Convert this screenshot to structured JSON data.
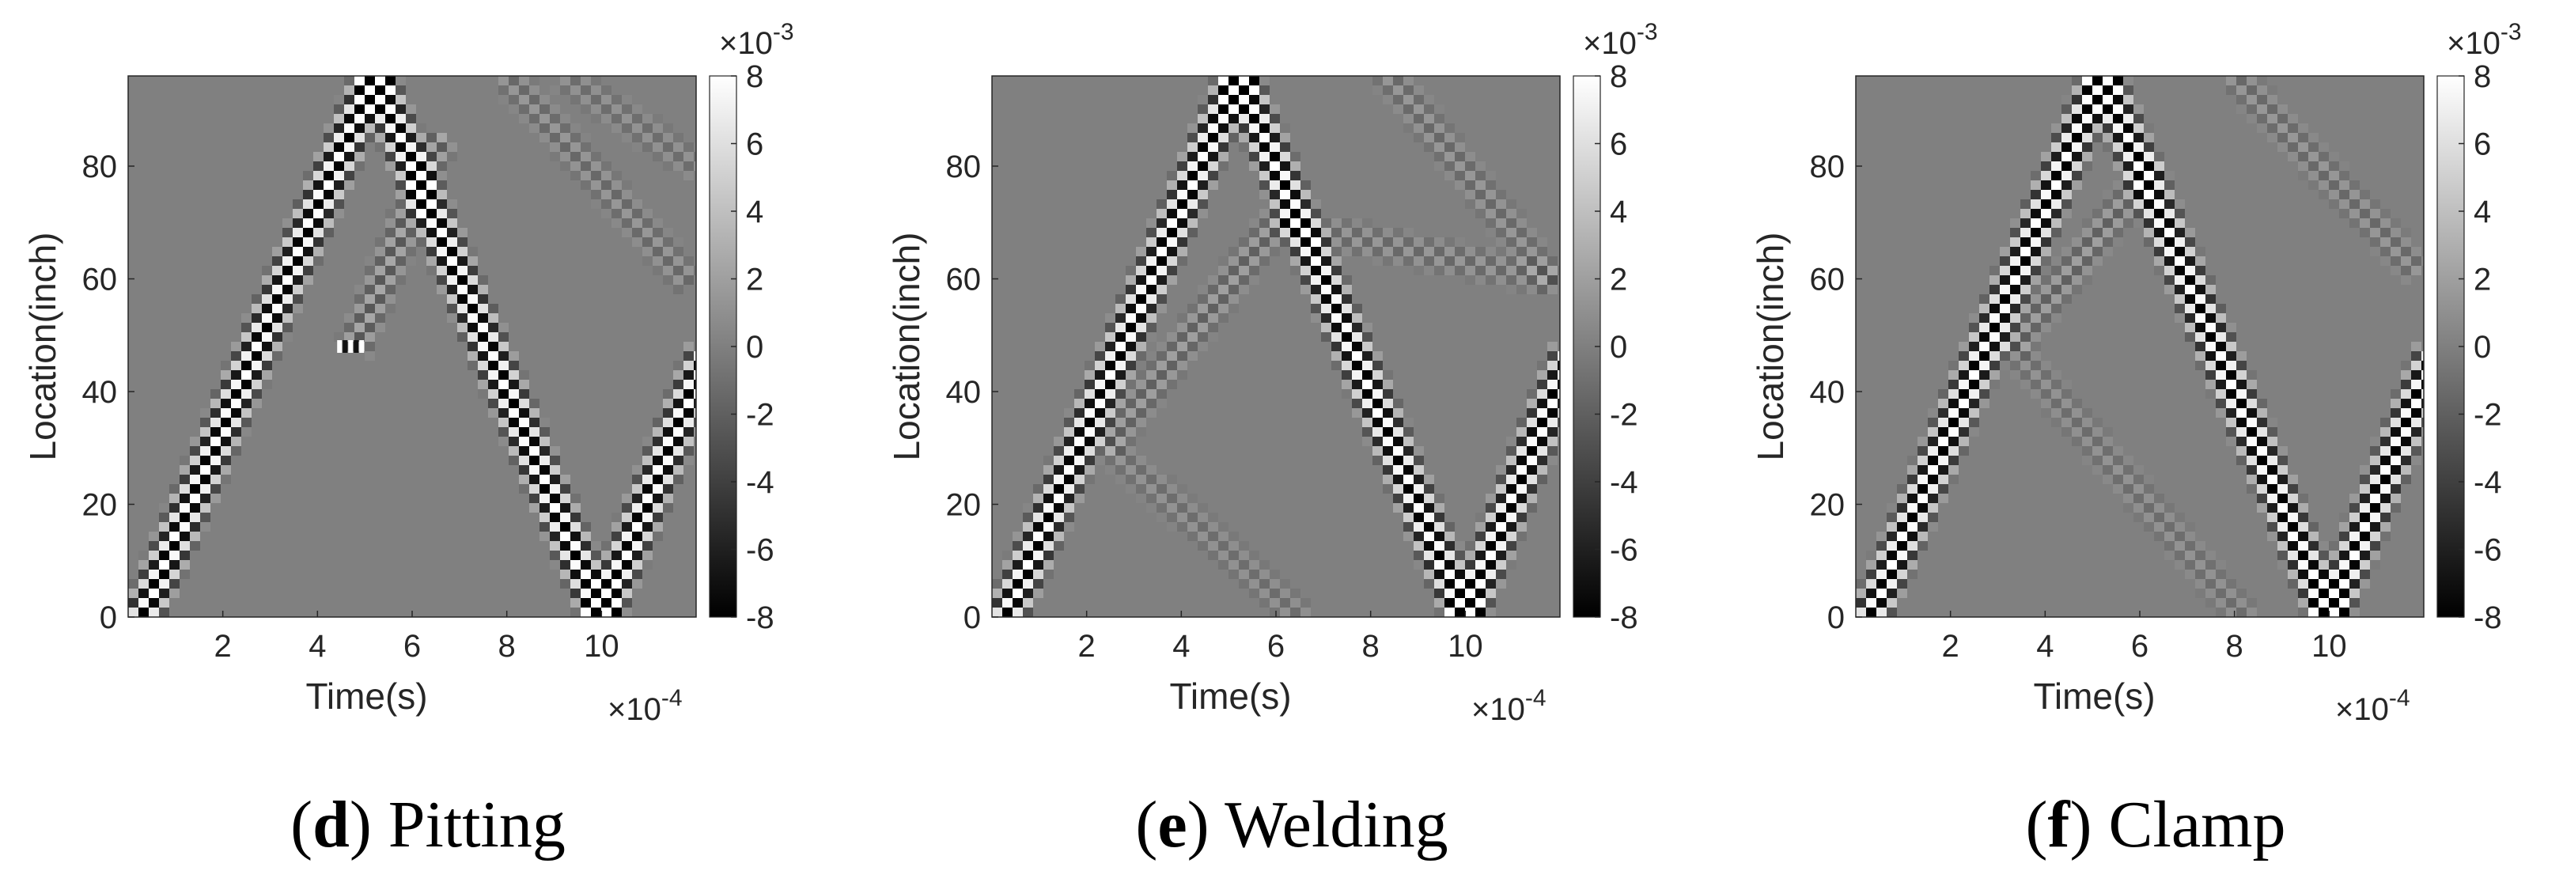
{
  "chart_data": [
    {
      "type": "heatmap",
      "caption_letter": "d",
      "caption_text": "Pitting",
      "xlabel": "Time(s)",
      "ylabel": "Location(inch)",
      "x_multiplier": "×10",
      "x_multiplier_exp": "-4",
      "xlim": [
        0,
        12
      ],
      "ylim": [
        0,
        96
      ],
      "x_ticks": [
        "2",
        "4",
        "6",
        "8",
        "10"
      ],
      "y_ticks": [
        "0",
        "20",
        "40",
        "60",
        "80"
      ],
      "colorbar": {
        "multiplier": "×10",
        "multiplier_exp": "-3",
        "ticks": [
          "8",
          "6",
          "4",
          "2",
          "0",
          "-2",
          "-4",
          "-6",
          "-8"
        ],
        "range": [
          -8,
          8
        ],
        "colormap": "gray"
      },
      "bands": [
        {
          "role": "incident",
          "points": [
            [
              0.3,
              0
            ],
            [
              5.2,
              96
            ]
          ],
          "amplitude": 8
        },
        {
          "role": "end-reflection",
          "points": [
            [
              5.2,
              96
            ],
            [
              10.0,
              0
            ]
          ],
          "amplitude": 8
        },
        {
          "role": "second-reflection",
          "points": [
            [
              10.0,
              0
            ],
            [
              12.2,
              46
            ]
          ],
          "amplitude": 8
        },
        {
          "role": "defect-echo",
          "points": [
            [
              4.8,
              48
            ],
            [
              6.6,
              85
            ]
          ],
          "amplitude": 2.5
        },
        {
          "role": "secondary",
          "points": [
            [
              8.0,
              96
            ],
            [
              11.8,
              60
            ]
          ],
          "amplitude": 1.5
        },
        {
          "role": "secondary",
          "points": [
            [
              9.2,
              96
            ],
            [
              12,
              80
            ]
          ],
          "amplitude": 1.2
        }
      ],
      "feature_points": [
        {
          "label": "pitting",
          "x": 4.7,
          "y": 48
        }
      ]
    },
    {
      "type": "heatmap",
      "caption_letter": "e",
      "caption_text": "Welding",
      "xlabel": "Time(s)",
      "ylabel": "Location(inch)",
      "x_multiplier": "×10",
      "x_multiplier_exp": "-4",
      "xlim": [
        0,
        12
      ],
      "ylim": [
        0,
        96
      ],
      "x_ticks": [
        "2",
        "4",
        "6",
        "8",
        "10"
      ],
      "y_ticks": [
        "0",
        "20",
        "40",
        "60",
        "80"
      ],
      "colorbar": {
        "multiplier": "×10",
        "multiplier_exp": "-3",
        "ticks": [
          "8",
          "6",
          "4",
          "2",
          "0",
          "-2",
          "-4",
          "-6",
          "-8"
        ],
        "range": [
          -8,
          8
        ],
        "colormap": "gray"
      },
      "bands": [
        {
          "role": "incident",
          "points": [
            [
              0.3,
              0
            ],
            [
              5.2,
              96
            ]
          ],
          "amplitude": 8
        },
        {
          "role": "end-reflection",
          "points": [
            [
              5.2,
              96
            ],
            [
              10.0,
              0
            ]
          ],
          "amplitude": 8
        },
        {
          "role": "second-reflection",
          "points": [
            [
              10.0,
              0
            ],
            [
              12.2,
              46
            ]
          ],
          "amplitude": 8
        },
        {
          "role": "weld-reflection",
          "points": [
            [
              2.4,
              30
            ],
            [
              6.0,
              70
            ]
          ],
          "amplitude": 2
        },
        {
          "role": "weld-reflection",
          "points": [
            [
              6.0,
              70
            ],
            [
              11.8,
              60
            ]
          ],
          "amplitude": 1.5
        },
        {
          "role": "secondary",
          "points": [
            [
              2.5,
              30
            ],
            [
              6.5,
              0
            ]
          ],
          "amplitude": 1.2
        },
        {
          "role": "secondary",
          "points": [
            [
              8.4,
              96
            ],
            [
              11.8,
              60
            ]
          ],
          "amplitude": 1.5
        }
      ]
    },
    {
      "type": "heatmap",
      "caption_letter": "f",
      "caption_text": "Clamp",
      "xlabel": "Time(s)",
      "ylabel": "Location(inch)",
      "x_multiplier": "×10",
      "x_multiplier_exp": "-4",
      "xlim": [
        0,
        12
      ],
      "ylim": [
        0,
        96
      ],
      "x_ticks": [
        "2",
        "4",
        "6",
        "8",
        "10"
      ],
      "y_ticks": [
        "0",
        "20",
        "40",
        "60",
        "80"
      ],
      "colorbar": {
        "multiplier": "×10",
        "multiplier_exp": "-3",
        "ticks": [
          "8",
          "6",
          "4",
          "2",
          "0",
          "-2",
          "-4",
          "-6",
          "-8"
        ],
        "range": [
          -8,
          8
        ],
        "colormap": "gray"
      },
      "bands": [
        {
          "role": "incident",
          "points": [
            [
              0.3,
              0
            ],
            [
              5.2,
              96
            ]
          ],
          "amplitude": 8
        },
        {
          "role": "end-reflection",
          "points": [
            [
              5.2,
              96
            ],
            [
              10.0,
              0
            ]
          ],
          "amplitude": 8
        },
        {
          "role": "second-reflection",
          "points": [
            [
              10.0,
              0
            ],
            [
              12.2,
              46
            ]
          ],
          "amplitude": 8
        },
        {
          "role": "clamp-reflection",
          "points": [
            [
              3.3,
              48
            ],
            [
              6.3,
              80
            ]
          ],
          "amplitude": 2
        },
        {
          "role": "secondary",
          "points": [
            [
              3.3,
              48
            ],
            [
              8.2,
              0
            ]
          ],
          "amplitude": 1.2
        },
        {
          "role": "secondary",
          "points": [
            [
              8.0,
              96
            ],
            [
              11.8,
              62
            ]
          ],
          "amplitude": 1.5
        }
      ]
    }
  ]
}
